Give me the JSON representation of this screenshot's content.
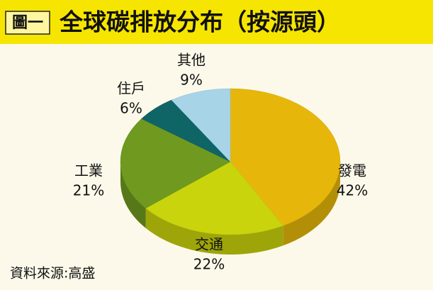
{
  "chart_data": {
    "type": "pie3d",
    "figure_label": "圖一",
    "title": "全球碳排放分布（按源頭）",
    "source": "資料來源:高盛",
    "categories": [
      "發電",
      "交通",
      "工業",
      "住戶",
      "其他"
    ],
    "values": [
      42,
      22,
      21,
      6,
      9
    ],
    "value_labels": [
      "42%",
      "22%",
      "21%",
      "6%",
      "9%"
    ],
    "colors": [
      "#e6b70a",
      "#c9d40c",
      "#6f9a1f",
      "#0f6466",
      "#a8d4e8"
    ]
  }
}
